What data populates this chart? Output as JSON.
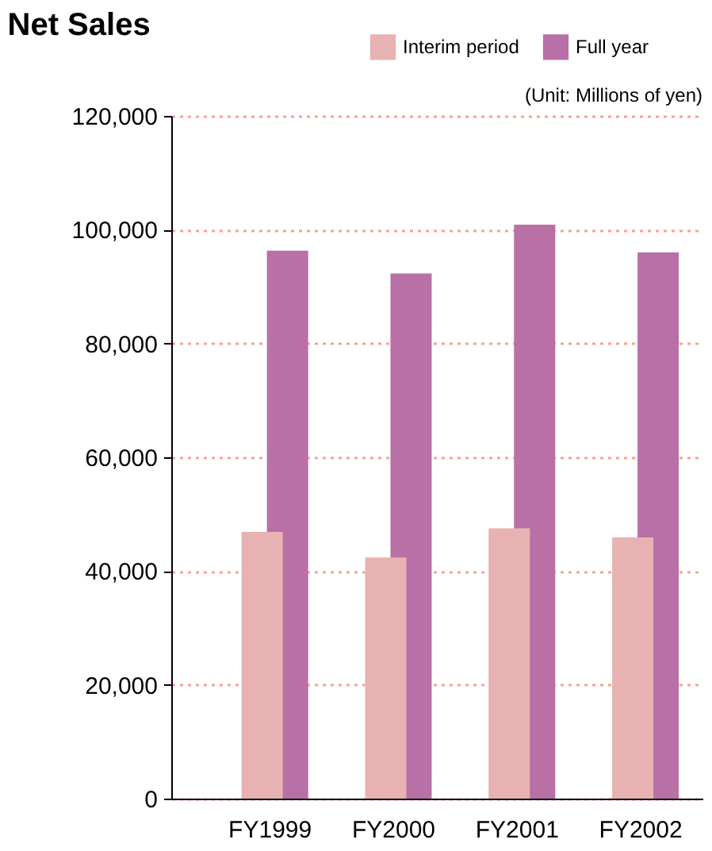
{
  "chart_data": {
    "type": "bar",
    "title": "Net Sales",
    "annotations": [
      "(Unit: Millions of yen)"
    ],
    "categories": [
      "FY1999",
      "FY2000",
      "FY2001",
      "FY2002"
    ],
    "series": [
      {
        "name": "Interim period",
        "color": "#e8b2b2",
        "values": [
          46900,
          42400,
          47500,
          45900
        ]
      },
      {
        "name": "Full year",
        "color": "#b870a6",
        "values": [
          96300,
          92300,
          100900,
          96000
        ]
      }
    ],
    "ylim": [
      0,
      120000
    ],
    "yticks": [
      0,
      {
        "value": 20000,
        "label": "20,000"
      },
      {
        "value": 40000,
        "label": "40,000"
      },
      {
        "value": 60000,
        "label": "60,000"
      },
      {
        "value": 80000,
        "label": "80,000"
      },
      {
        "value": 100000,
        "label": "100,000"
      },
      {
        "value": 120000,
        "label": "120,000"
      }
    ],
    "grid": "y",
    "legend": "top right"
  }
}
